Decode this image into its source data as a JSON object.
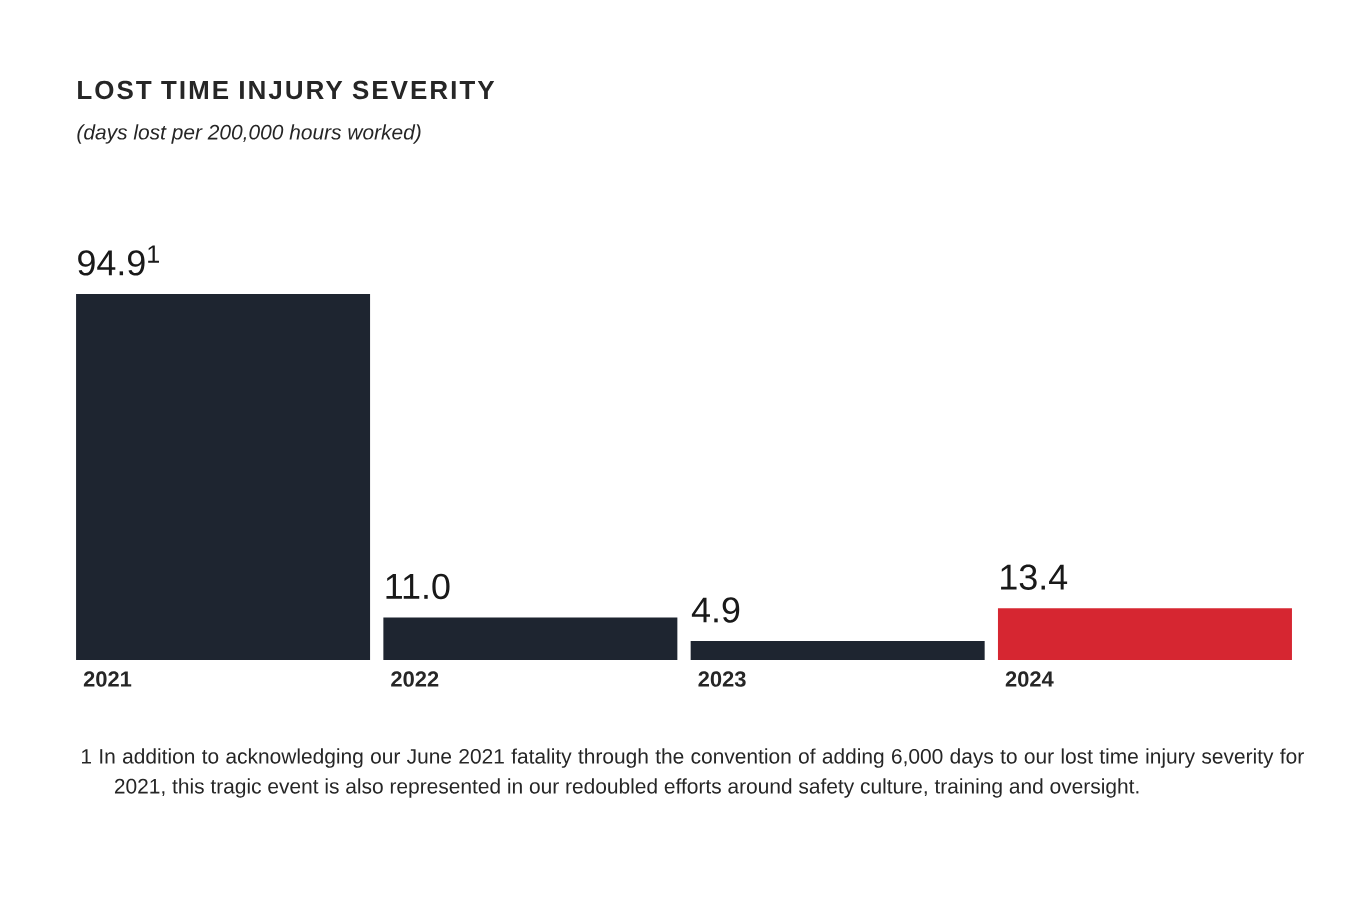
{
  "chart_data": {
    "type": "bar",
    "title": "LOST TIME INJURY SEVERITY",
    "subtitle": "(days lost per 200,000 hours worked)",
    "categories": [
      "2021",
      "2022",
      "2023",
      "2024"
    ],
    "values": [
      94.9,
      11.0,
      4.9,
      13.4
    ],
    "value_labels": [
      "94.9$^{1}$",
      "11.0",
      "4.9",
      "13.4"
    ],
    "colors": [
      "#1e2530",
      "#1e2530",
      "#1e2530",
      "#d62631"
    ],
    "annotations": [
      "1  In addition to acknowledging our June 2021 fatality through the convention of adding 6,000 days to our lost time injury severity for 2021, this tragic event is also represented in our redoubled efforts around safety culture, training and oversight."
    ]
  }
}
